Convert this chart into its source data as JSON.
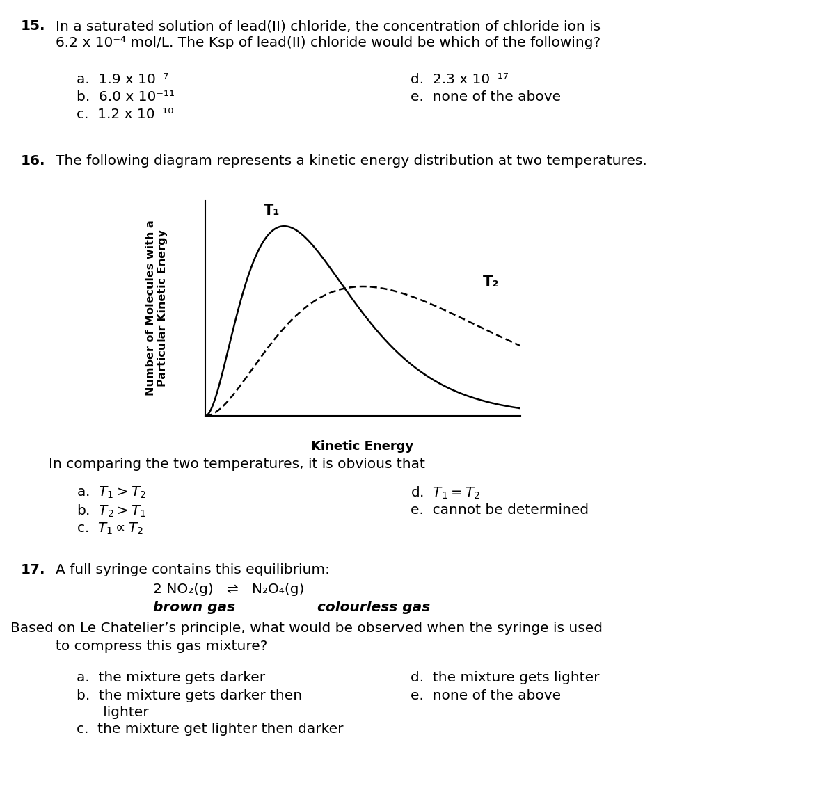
{
  "bg_color": "#ffffff",
  "q15_num": "15.",
  "q15_line1": "In a saturated solution of lead(II) chloride, the concentration of chloride ion is",
  "q15_line2": "6.2 x 10⁻⁴ mol/L. The Ksp of lead(II) chloride would be which of the following?",
  "q15_a": "a.  1.9 x 10⁻⁷",
  "q15_b": "b.  6.0 x 10⁻¹¹",
  "q15_c": "c.  1.2 x 10⁻¹⁰",
  "q15_d": "d.  2.3 x 10⁻¹⁷",
  "q15_e": "e.  none of the above",
  "q16_num": "16.",
  "q16_text": "The following diagram represents a kinetic energy distribution at two temperatures.",
  "q16_ylabel1": "Number of Molecules with a",
  "q16_ylabel2": "Particular Kinetic Energy",
  "q16_xlabel": "Kinetic Energy",
  "q16_T1": "T₁",
  "q16_T2": "T₂",
  "q16_sub": "In comparing the two temperatures, it is obvious that",
  "q16_a": "a.  $T_1 > T_2$",
  "q16_b": "b.  $T_2 > T_1$",
  "q16_c": "c.  $T_1 \\propto T_2$",
  "q16_d": "d.  $T_1 = T_2$",
  "q16_e": "e.  cannot be determined",
  "q17_num": "17.",
  "q17_line1": "A full syringe contains this equilibrium:",
  "q17_eq1": "2 NO₂(g)   ⇌   N₂O₄(g)",
  "q17_eq2a": "brown gas",
  "q17_eq2b": "        colourless gas",
  "q17_line3": "Based on Le Chatelier’s principle, what would be observed when the syringe is used",
  "q17_line4": "to compress this gas mixture?",
  "q17_a": "a.  the mixture gets darker",
  "q17_b1": "b.  the mixture gets darker then",
  "q17_b2": "      lighter",
  "q17_c": "c.  the mixture get lighter then darker",
  "q17_d": "d.  the mixture gets lighter",
  "q17_e": "e.  none of the above"
}
